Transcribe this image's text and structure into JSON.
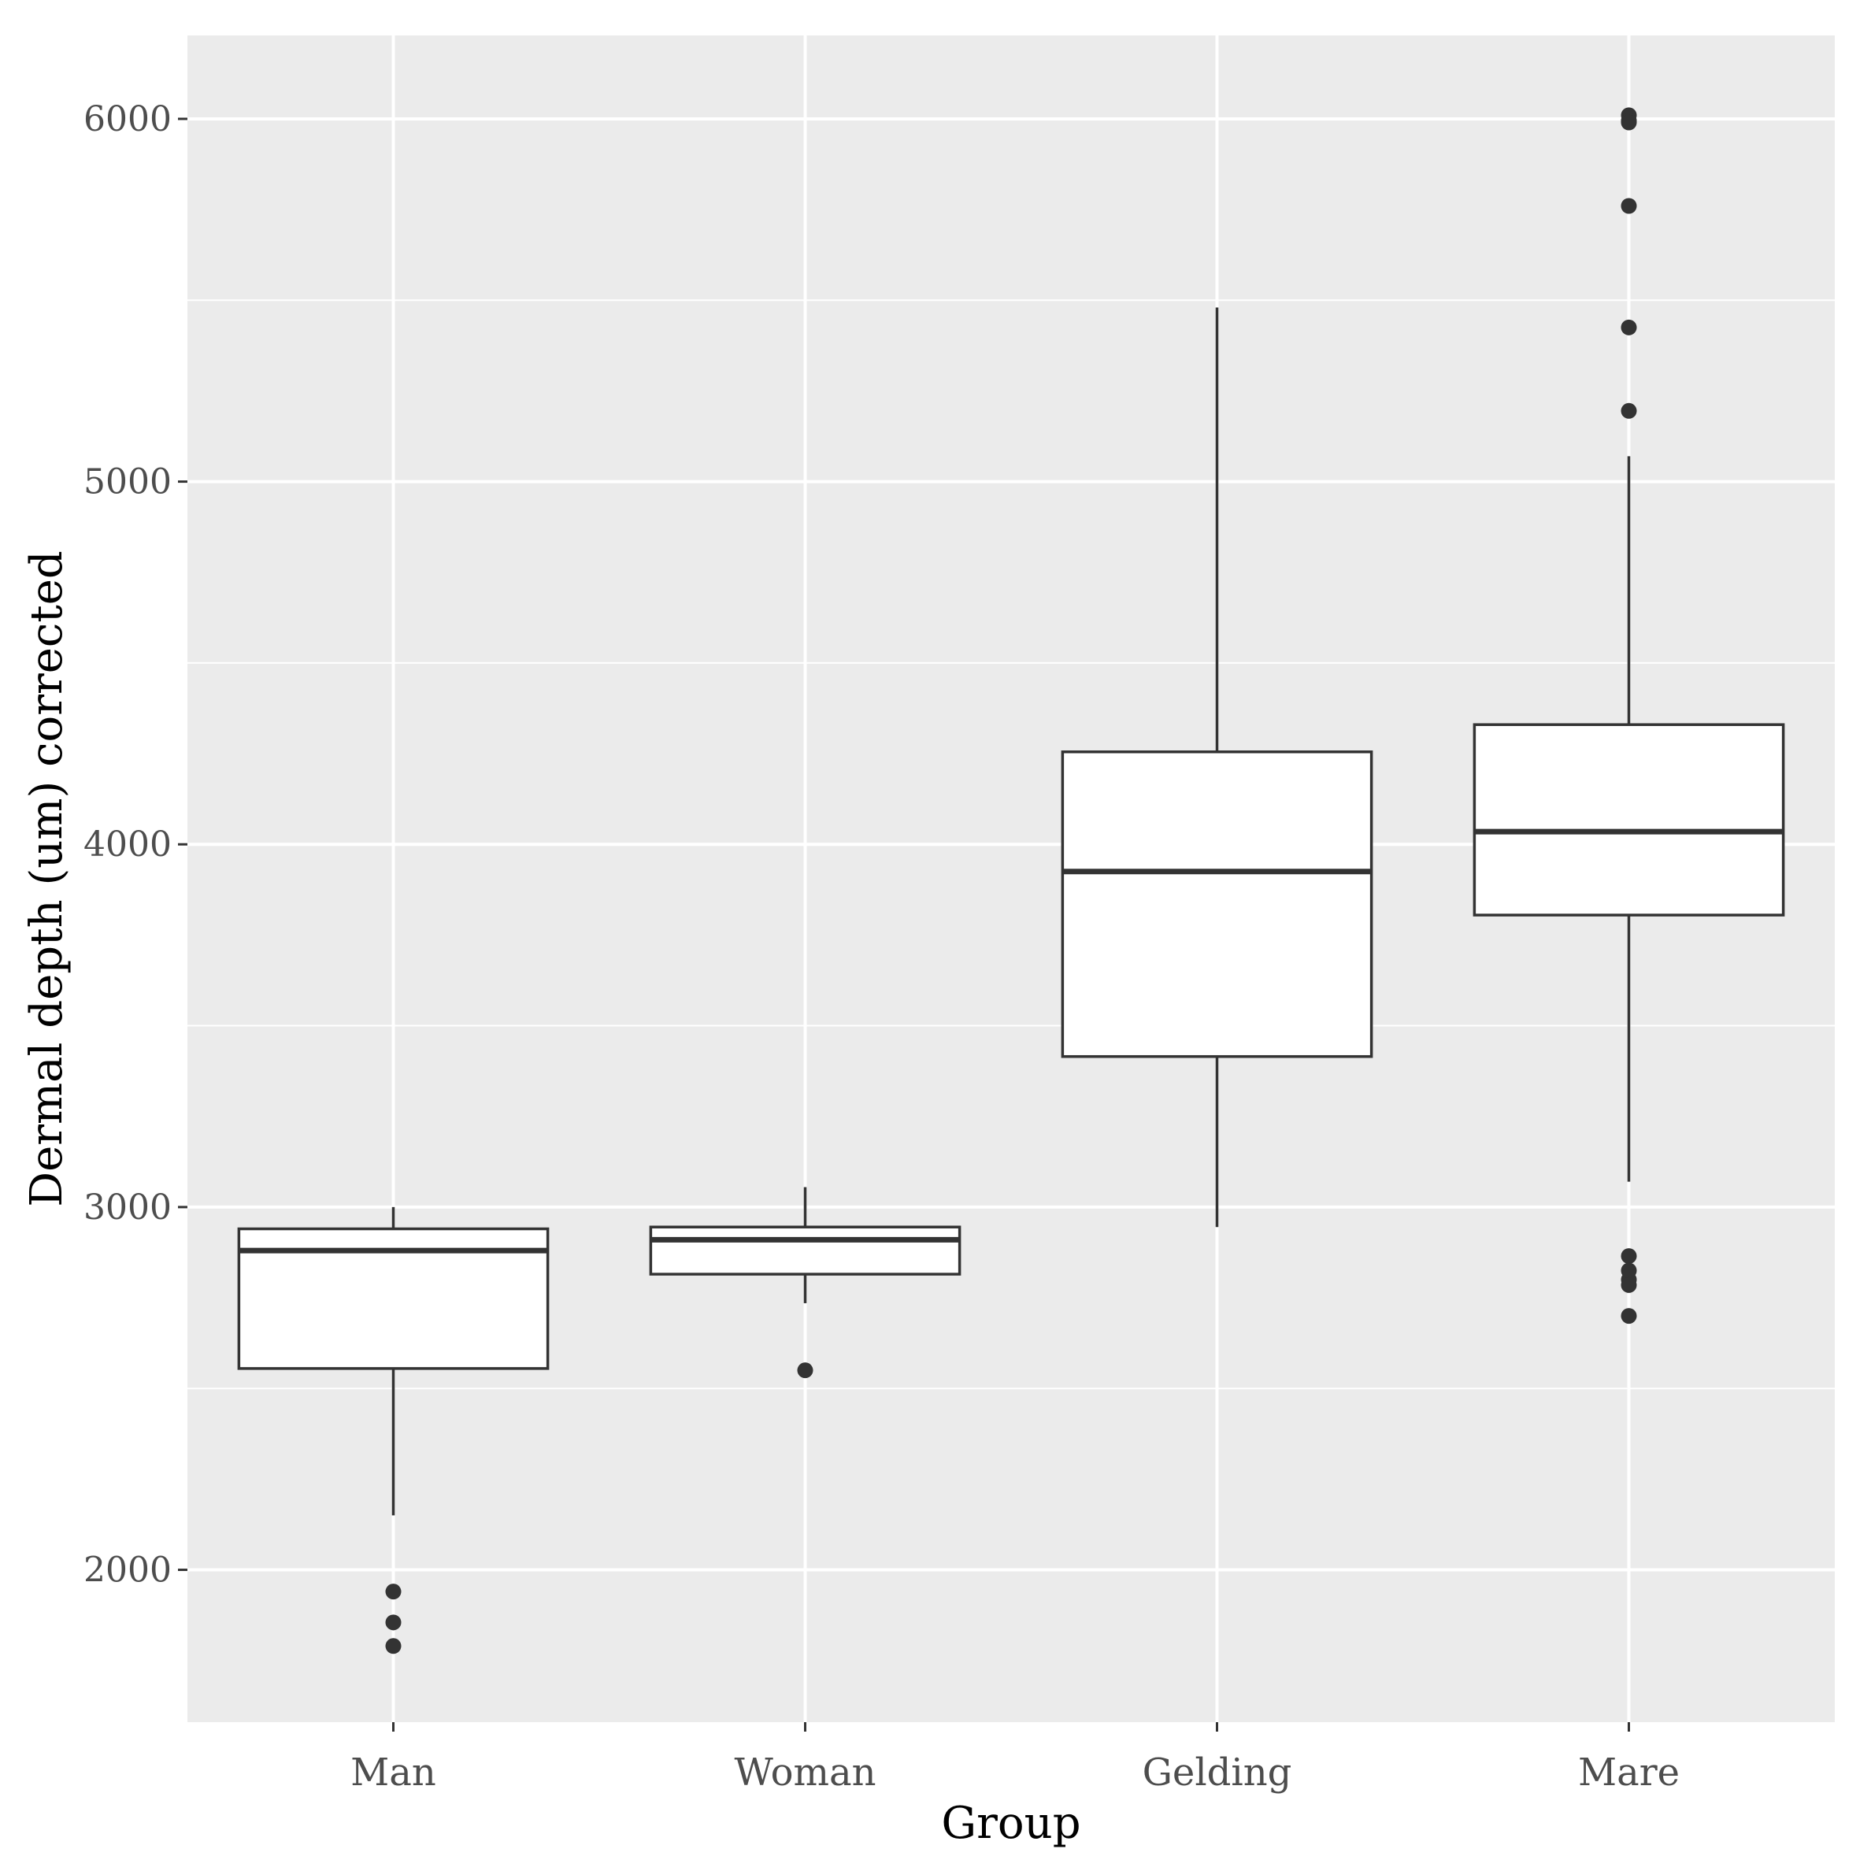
{
  "chart_data": {
    "type": "boxplot",
    "xlabel": "Group",
    "ylabel": "Dermal depth (um) corrected",
    "ylim": [
      1580,
      6230
    ],
    "yticks": [
      2000,
      3000,
      4000,
      5000,
      6000
    ],
    "categories": [
      "Man",
      "Woman",
      "Gelding",
      "Mare"
    ],
    "grid": true,
    "legend": "none",
    "colors": {
      "panel_bg": "#ebebeb",
      "grid_major": "#ffffff",
      "box_fill": "#ffffff",
      "box_stroke": "#333333",
      "outlier": "#333333",
      "axis_text": "#4d4d4d",
      "axis_title": "#000000"
    },
    "boxes": [
      {
        "name": "Man",
        "whisker_low": 2150,
        "q1": 2555,
        "median": 2880,
        "q3": 2940,
        "whisker_high": 3000,
        "outliers": [
          1940,
          1855,
          1790
        ]
      },
      {
        "name": "Woman",
        "whisker_low": 2735,
        "q1": 2815,
        "median": 2910,
        "q3": 2945,
        "whisker_high": 3055,
        "outliers": [
          2550
        ]
      },
      {
        "name": "Gelding",
        "whisker_low": 2945,
        "q1": 3415,
        "median": 3925,
        "q3": 4255,
        "whisker_high": 5480,
        "outliers": []
      },
      {
        "name": "Mare",
        "whisker_low": 3070,
        "q1": 3805,
        "median": 4035,
        "q3": 4330,
        "whisker_high": 5070,
        "outliers": [
          6010,
          5995,
          5990,
          5760,
          5425,
          5195,
          2865,
          2825,
          2800,
          2785,
          2700
        ]
      }
    ]
  }
}
